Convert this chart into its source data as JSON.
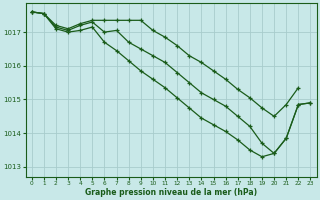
{
  "xlabel": "Graphe pression niveau de la mer (hPa)",
  "bg_color": "#c8e8e8",
  "grid_color": "#a8cccc",
  "line_color": "#1a5c1a",
  "xlim": [
    -0.5,
    23.5
  ],
  "ylim": [
    1012.7,
    1017.85
  ],
  "yticks": [
    1013,
    1014,
    1015,
    1016,
    1017
  ],
  "xticks": [
    0,
    1,
    2,
    3,
    4,
    5,
    6,
    7,
    8,
    9,
    10,
    11,
    12,
    13,
    14,
    15,
    16,
    17,
    18,
    19,
    20,
    21,
    22,
    23
  ],
  "series1_y": [
    1017.6,
    1017.55,
    1017.2,
    1017.1,
    1017.25,
    1017.35,
    1017.35,
    1017.35,
    1017.35,
    1017.35,
    1017.05,
    1016.85,
    1016.6,
    1016.3,
    1016.1,
    1015.85,
    1015.6,
    1015.3,
    1015.05,
    1014.75,
    1014.5,
    1014.85,
    1015.35,
    null
  ],
  "series2_y": [
    1017.6,
    1017.55,
    1017.15,
    1017.05,
    1017.2,
    1017.3,
    1017.0,
    1017.05,
    1016.7,
    1016.5,
    1016.3,
    1016.1,
    1015.8,
    1015.5,
    1015.2,
    1015.0,
    1014.8,
    1014.5,
    1014.2,
    1013.7,
    1013.4,
    1013.85,
    1014.85,
    1014.9
  ],
  "series3_y": [
    1017.6,
    1017.55,
    1017.1,
    1017.0,
    1017.05,
    1017.15,
    1016.7,
    1016.45,
    1016.15,
    1015.85,
    1015.6,
    1015.35,
    1015.05,
    1014.75,
    1014.45,
    1014.25,
    1014.05,
    1013.8,
    1013.5,
    1013.3,
    1013.4,
    1013.85,
    1014.85,
    1014.9
  ]
}
